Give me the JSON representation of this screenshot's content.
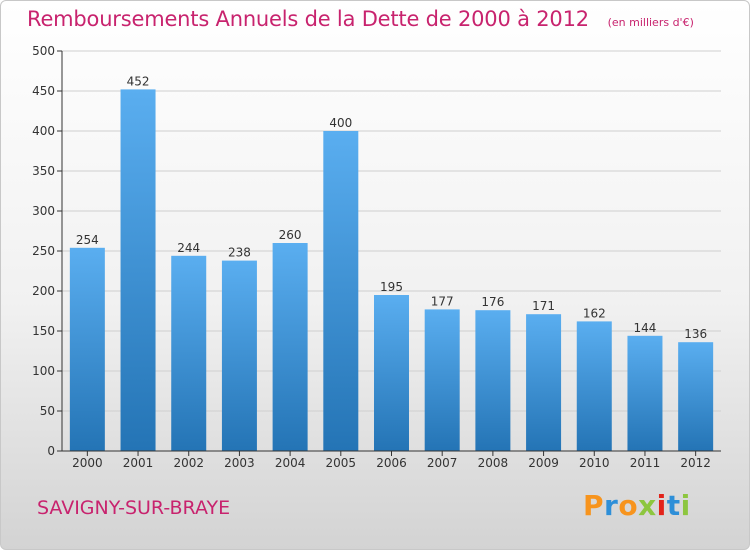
{
  "title": "Remboursements Annuels de la Dette de 2000 à 2012",
  "unit_label": "(en milliers d'€)",
  "commune": "SAVIGNY-SUR-BRAYE",
  "logo": {
    "text": "Proxiti",
    "letter_colors": [
      "#f7941d",
      "#2e8fd8",
      "#f7941d",
      "#8dc63f",
      "#e2231a",
      "#2e8fd8",
      "#8dc63f"
    ]
  },
  "colors": {
    "bar_top": "#5aaef0",
    "bar_bottom": "#2474b5",
    "title": "#c8236e",
    "grid": "#cfcfcf",
    "axis": "#333333"
  },
  "chart_data": {
    "type": "bar",
    "categories": [
      "2000",
      "2001",
      "2002",
      "2003",
      "2004",
      "2005",
      "2006",
      "2007",
      "2008",
      "2009",
      "2010",
      "2011",
      "2012"
    ],
    "values": [
      254,
      452,
      244,
      238,
      260,
      400,
      195,
      177,
      176,
      171,
      162,
      144,
      136
    ],
    "ylim": [
      0,
      500
    ],
    "yticks": [
      0,
      50,
      100,
      150,
      200,
      250,
      300,
      350,
      400,
      450,
      500
    ],
    "grid": true,
    "xlabel": "",
    "ylabel": ""
  }
}
